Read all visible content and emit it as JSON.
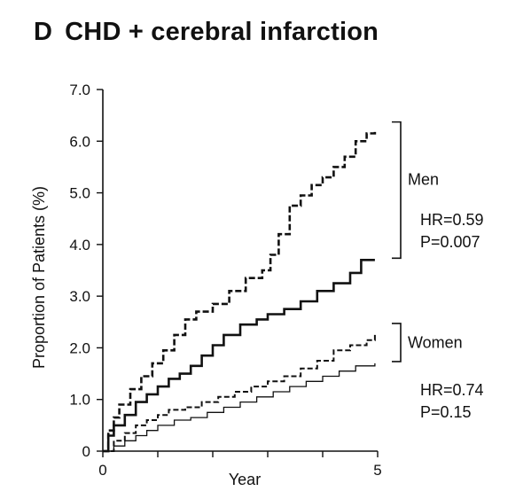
{
  "panel": {
    "letter": "D",
    "title": "CHD + cerebral infarction"
  },
  "chart_data": {
    "type": "line",
    "title": "CHD + cerebral infarction",
    "xlabel": "Year",
    "ylabel": "Proportion of Patients (%)",
    "xlim": [
      0,
      5
    ],
    "ylim": [
      0,
      7
    ],
    "x_ticks": [
      0,
      1,
      2,
      3,
      4,
      5
    ],
    "x_tick_labels": [
      "0",
      "",
      "",
      "",
      "",
      "5"
    ],
    "y_ticks": [
      0,
      1,
      2,
      3,
      4,
      5,
      6,
      7
    ],
    "y_tick_labels": [
      "0",
      "1.0",
      "2.0",
      "3.0",
      "4.0",
      "5.0",
      "6.0",
      "7.0"
    ],
    "grid": false,
    "series": [
      {
        "group": "Men",
        "style": "dashed",
        "weight": "heavy",
        "color": "#111111",
        "x": [
          0,
          0.1,
          0.2,
          0.3,
          0.5,
          0.7,
          0.9,
          1.1,
          1.3,
          1.5,
          1.7,
          2.0,
          2.3,
          2.6,
          2.9,
          3.05,
          3.2,
          3.4,
          3.6,
          3.8,
          4.0,
          4.2,
          4.4,
          4.6,
          4.8,
          4.95
        ],
        "values": [
          0,
          0.4,
          0.65,
          0.9,
          1.2,
          1.45,
          1.7,
          1.95,
          2.25,
          2.55,
          2.7,
          2.85,
          3.1,
          3.35,
          3.5,
          3.8,
          4.2,
          4.75,
          4.95,
          5.15,
          5.3,
          5.5,
          5.7,
          6.0,
          6.15,
          6.2
        ]
      },
      {
        "group": "Men",
        "style": "solid",
        "weight": "heavy",
        "color": "#111111",
        "x": [
          0,
          0.1,
          0.2,
          0.4,
          0.6,
          0.8,
          1.0,
          1.2,
          1.4,
          1.6,
          1.8,
          2.0,
          2.2,
          2.5,
          2.8,
          3.0,
          3.3,
          3.6,
          3.9,
          4.2,
          4.5,
          4.7,
          4.95
        ],
        "values": [
          0,
          0.3,
          0.5,
          0.7,
          0.95,
          1.1,
          1.25,
          1.4,
          1.5,
          1.65,
          1.85,
          2.05,
          2.25,
          2.45,
          2.55,
          2.65,
          2.75,
          2.9,
          3.1,
          3.25,
          3.45,
          3.7,
          3.7
        ]
      },
      {
        "group": "Women",
        "style": "dashed",
        "weight": "medium",
        "color": "#111111",
        "x": [
          0,
          0.2,
          0.4,
          0.6,
          0.8,
          1.0,
          1.2,
          1.5,
          1.8,
          2.1,
          2.4,
          2.7,
          3.0,
          3.3,
          3.6,
          3.9,
          4.2,
          4.5,
          4.8,
          4.95
        ],
        "values": [
          0,
          0.2,
          0.35,
          0.5,
          0.6,
          0.7,
          0.8,
          0.85,
          0.95,
          1.05,
          1.15,
          1.25,
          1.35,
          1.45,
          1.6,
          1.75,
          1.95,
          2.05,
          2.15,
          2.3
        ]
      },
      {
        "group": "Women",
        "style": "solid",
        "weight": "light",
        "color": "#111111",
        "x": [
          0,
          0.2,
          0.4,
          0.6,
          0.8,
          1.0,
          1.3,
          1.6,
          1.9,
          2.2,
          2.5,
          2.8,
          3.1,
          3.4,
          3.7,
          4.0,
          4.3,
          4.6,
          4.95
        ],
        "values": [
          0,
          0.1,
          0.2,
          0.3,
          0.4,
          0.5,
          0.6,
          0.65,
          0.75,
          0.85,
          0.95,
          1.05,
          1.15,
          1.25,
          1.35,
          1.45,
          1.55,
          1.65,
          1.7
        ]
      }
    ],
    "annotations": [
      {
        "label": "Men",
        "hr": "HR=0.59",
        "p": "P=0.007",
        "bracket": [
          3.7,
          6.2
        ]
      },
      {
        "label": "Women",
        "hr": "HR=0.74",
        "p": "P=0.15",
        "bracket": [
          1.7,
          2.3
        ]
      }
    ]
  }
}
